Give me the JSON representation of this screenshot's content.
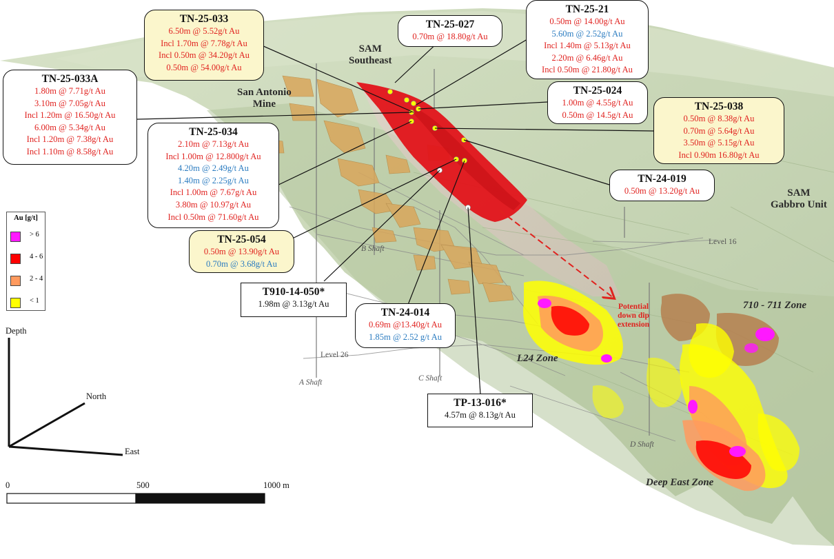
{
  "colors": {
    "red_text": "#e0221f",
    "blue_text": "#2a7bc0",
    "yellow_box": "#fbf6cc",
    "gabbro_green": "#c3d2ae",
    "sam_red": "#e2141a"
  },
  "callouts": {
    "tn25033": {
      "title": "TN-25-033",
      "rows": [
        "6.50m @ 5.52g/t Au",
        "Incl 1.70m @ 7.78g/t Au",
        "Incl 0.50m @ 34.20g/t Au",
        "0.50m @ 54.00g/t Au"
      ]
    },
    "tn25027": {
      "title": "TN-25-027",
      "rows": [
        "0.70m @ 18.80g/t Au"
      ]
    },
    "tn2521": {
      "title": "TN-25-21",
      "rows": [
        "0.50m @ 14.00g/t Au",
        "5.60m @ 2.52g/t Au",
        "Incl 1.40m @ 5.13g/t Au",
        "2.20m @ 6.46g/t Au",
        "Incl 0.50m @ 21.80g/t Au"
      ]
    },
    "tn25033a": {
      "title": "TN-25-033A",
      "rows": [
        "1.80m @ 7.71g/t Au",
        "3.10m @ 7.05g/t Au",
        "Incl 1.20m @ 16.50g/t Au",
        "6.00m @ 5.34g/t Au",
        "Incl 1.20m @ 7.38g/t Au",
        "Incl 1.10m @ 8.58g/t Au"
      ]
    },
    "tn25024": {
      "title": "TN-25-024",
      "rows": [
        "1.00m @ 4.55g/t Au",
        "0.50m @ 14.5g/t Au"
      ]
    },
    "tn25038": {
      "title": "TN-25-038",
      "rows": [
        "0.50m @ 8.38g/t Au",
        "0.70m @ 5.64g/t Au",
        "3.50m @ 5.15g/t Au",
        "Incl 0.90m 16.80g/t Au"
      ]
    },
    "tn25034": {
      "title": "TN-25-034",
      "rows": [
        "2.10m @ 7.13g/t Au",
        "Incl 1.00m @ 12.800g/t Au",
        "4.20m @ 2.49g/t Au",
        "1.40m @ 2.25g/t Au",
        "Incl 1.00m @ 7.67g/t Au",
        "3.80m @ 10.97g/t Au",
        "Incl 0.50m @ 71.60g/t Au"
      ]
    },
    "tn24019": {
      "title": "TN-24-019",
      "rows": [
        "0.50m @ 13.20g/t Au"
      ]
    },
    "tn25054": {
      "title": "TN-25-054",
      "rows": [
        "0.50m @ 13.90g/t Au",
        "0.70m @ 3.68g/t Au"
      ]
    },
    "t91014050": {
      "title": "T910-14-050*",
      "rows": [
        "1.98m @ 3.13g/t Au"
      ]
    },
    "tn24014": {
      "title": "TN-24-014",
      "rows": [
        "0.69m @13.40g/t Au",
        "1.85m @ 2.52 g/t Au"
      ]
    },
    "tp13016": {
      "title": "TP-13-016*",
      "rows": [
        "4.57m @ 8.13g/t Au"
      ]
    }
  },
  "labels": {
    "sam_southeast": "SAM\nSoutheast",
    "san_antonio": "San Antonio\nMine",
    "sam_gabbro": "SAM\nGabbro Unit",
    "l24_zone": "L24 Zone",
    "zone_710": "710 - 711 Zone",
    "deep_east": "Deep East Zone",
    "extension": "Potential\ndown dip\nextension",
    "b_shaft": "B Shaft",
    "a_shaft": "A Shaft",
    "c_shaft": "C Shaft",
    "d_shaft": "D Shaft",
    "level16": "Level 16",
    "level26": "Level 26"
  },
  "legend": {
    "title": "Au [g/t]",
    "items": [
      {
        "label": "> 6",
        "color": "#ff19ff"
      },
      {
        "label": "4 - 6",
        "color": "#ff0000"
      },
      {
        "label": "2 - 4",
        "color": "#ff9a5e"
      },
      {
        "label": "< 1",
        "color": "#ffff00"
      }
    ]
  },
  "axes": {
    "depth": "Depth",
    "north": "North",
    "east": "East"
  },
  "scale": {
    "zero": "0",
    "mid": "500",
    "end": "1000 m"
  }
}
